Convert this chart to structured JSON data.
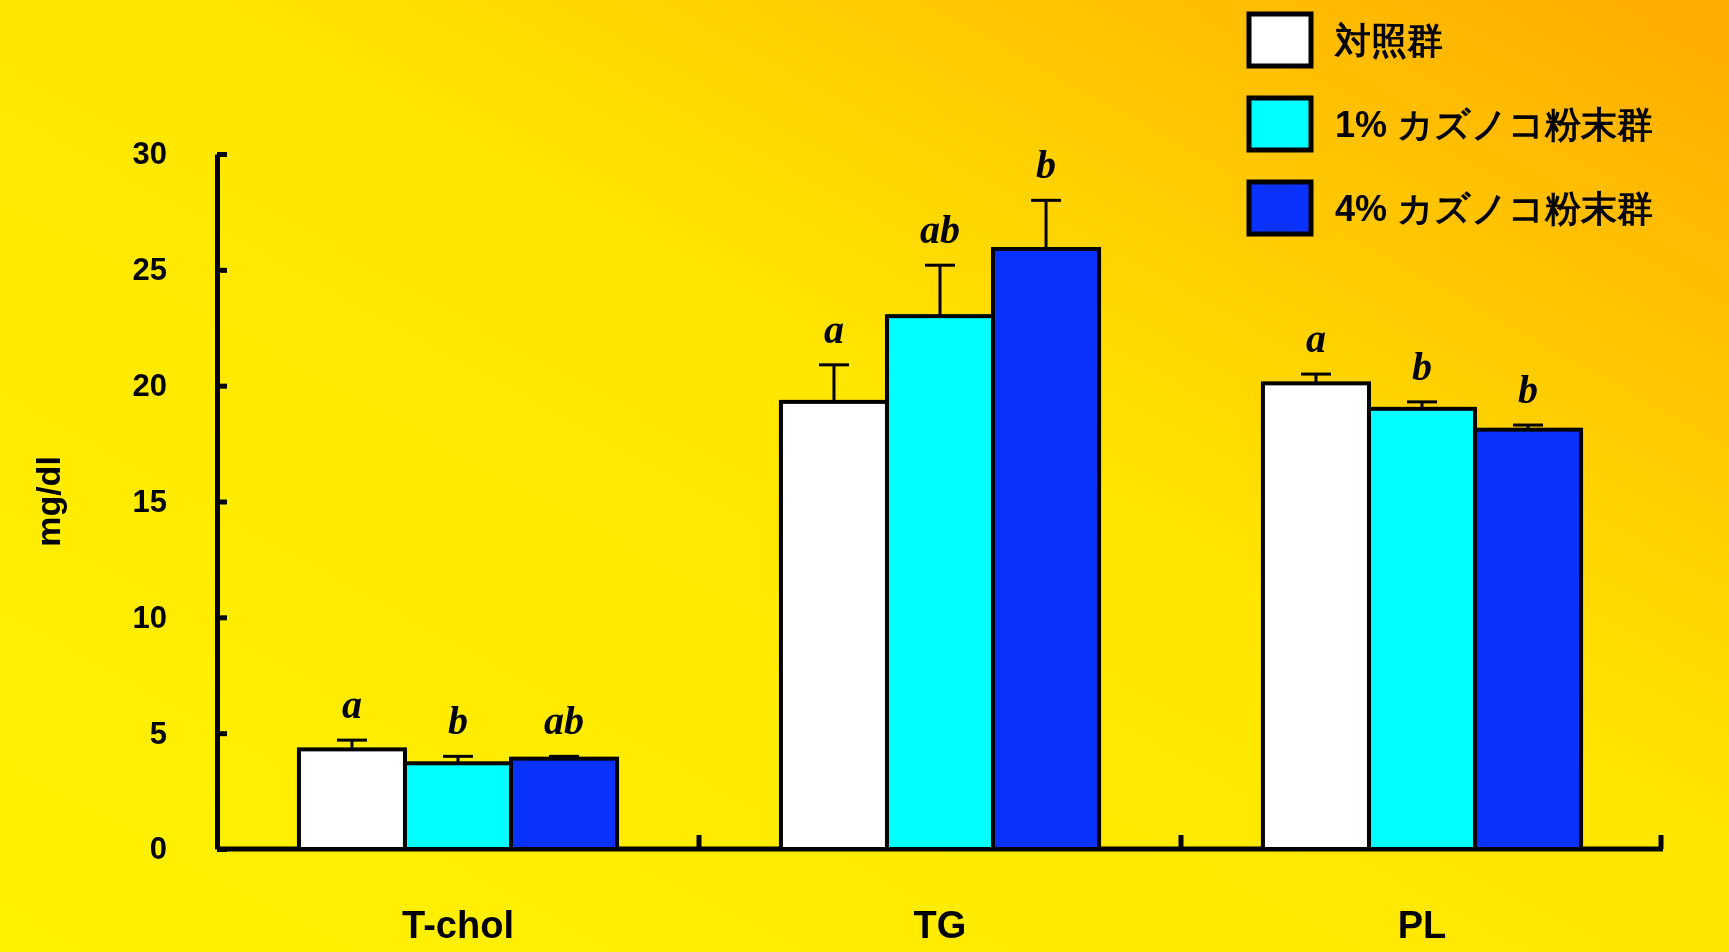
{
  "chart_data": {
    "type": "bar",
    "ylabel": "mg/dl",
    "categories": [
      "T-chol",
      "TG",
      "PL"
    ],
    "series": [
      {
        "name": "対照群",
        "color": "#ffffff",
        "values": [
          4.3,
          19.3,
          20.1
        ],
        "errors": [
          0.4,
          1.6,
          0.4
        ],
        "value_labels": [
          "a",
          "a",
          "a"
        ]
      },
      {
        "name": "1% カズノコ粉末群",
        "color": "#00ffff",
        "values": [
          3.7,
          23.0,
          19.0
        ],
        "errors": [
          0.3,
          2.2,
          0.3
        ],
        "value_labels": [
          "b",
          "ab",
          "b"
        ]
      },
      {
        "name": "4% カズノコ粉末群",
        "color": "#0a32ff",
        "values": [
          3.9,
          25.9,
          18.1
        ],
        "errors": [
          0.1,
          2.1,
          0.2
        ],
        "value_labels": [
          "ab",
          "b",
          "b"
        ]
      }
    ],
    "ylim": [
      0,
      30
    ],
    "yticks": [
      0,
      5,
      10,
      15,
      20,
      25,
      30
    ],
    "grid": false,
    "legend": "top right"
  }
}
